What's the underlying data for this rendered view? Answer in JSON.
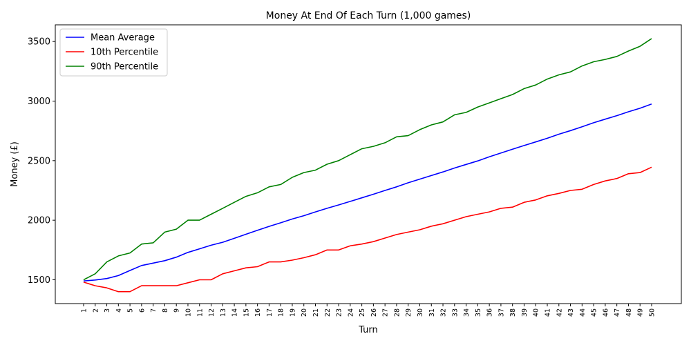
{
  "chart_data": {
    "type": "line",
    "title": "Money At End Of Each Turn (1,000 games)",
    "xlabel": "Turn",
    "ylabel": "Money (£)",
    "x": [
      1,
      2,
      3,
      4,
      5,
      6,
      7,
      8,
      9,
      10,
      11,
      12,
      13,
      14,
      15,
      16,
      17,
      18,
      19,
      20,
      21,
      22,
      23,
      24,
      25,
      26,
      27,
      28,
      29,
      30,
      31,
      32,
      33,
      34,
      35,
      36,
      37,
      38,
      39,
      40,
      41,
      42,
      43,
      44,
      45,
      46,
      47,
      48,
      49,
      50
    ],
    "xlim": [
      1,
      50
    ],
    "ylim": [
      1300,
      3640
    ],
    "yticks": [
      1500,
      2000,
      2500,
      3000,
      3500
    ],
    "grid": false,
    "legend_position": "top-left",
    "series": [
      {
        "name": "Mean Average",
        "color": "#0000ff",
        "values": [
          1490,
          1498,
          1510,
          1535,
          1578,
          1620,
          1640,
          1660,
          1690,
          1730,
          1760,
          1790,
          1815,
          1848,
          1882,
          1915,
          1948,
          1978,
          2010,
          2038,
          2070,
          2100,
          2128,
          2158,
          2188,
          2218,
          2250,
          2280,
          2314,
          2345,
          2375,
          2405,
          2438,
          2468,
          2498,
          2532,
          2564,
          2596,
          2627,
          2657,
          2688,
          2722,
          2752,
          2784,
          2818,
          2848,
          2878,
          2910,
          2940,
          2975
        ]
      },
      {
        "name": "10th Percentile",
        "color": "#ff0000",
        "values": [
          1480,
          1450,
          1432,
          1400,
          1400,
          1450,
          1450,
          1450,
          1450,
          1475,
          1500,
          1500,
          1550,
          1575,
          1600,
          1610,
          1650,
          1650,
          1665,
          1685,
          1710,
          1750,
          1750,
          1785,
          1800,
          1820,
          1850,
          1880,
          1900,
          1920,
          1950,
          1970,
          2000,
          2030,
          2050,
          2070,
          2100,
          2110,
          2150,
          2170,
          2205,
          2225,
          2250,
          2260,
          2300,
          2330,
          2350,
          2390,
          2400,
          2445
        ]
      },
      {
        "name": "90th Percentile",
        "color": "#008000",
        "values": [
          1500,
          1550,
          1650,
          1700,
          1725,
          1800,
          1810,
          1900,
          1925,
          2000,
          2000,
          2050,
          2100,
          2150,
          2200,
          2230,
          2280,
          2300,
          2360,
          2400,
          2420,
          2470,
          2500,
          2550,
          2600,
          2620,
          2650,
          2700,
          2710,
          2760,
          2800,
          2825,
          2885,
          2905,
          2950,
          2985,
          3020,
          3055,
          3105,
          3135,
          3185,
          3220,
          3245,
          3295,
          3330,
          3350,
          3375,
          3420,
          3460,
          3525
        ]
      }
    ]
  }
}
